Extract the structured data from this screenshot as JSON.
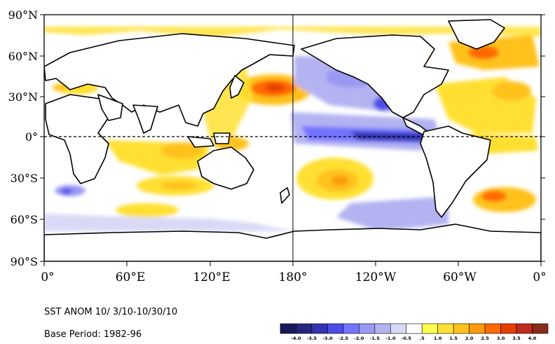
{
  "map": {
    "title": "SST ANOM 10/ 3/10-10/30/10",
    "base_period": "Base Period: 1982-96",
    "lat_labels": [
      "90°N",
      "60°N",
      "30°N",
      "0°",
      "30°S",
      "60°S",
      "90°S"
    ],
    "lon_labels": [
      "0°",
      "60°E",
      "120°E",
      "180°",
      "120°W",
      "60°W",
      "0°"
    ],
    "colorbar": {
      "labels": [
        "-4.0",
        "-3.5",
        "-3.0",
        "-2.5",
        "-2.0",
        "-1.5",
        "-1.0",
        "-0.5",
        ".5",
        "1.0",
        "1.5",
        "2.0",
        "2.5",
        "3.0",
        "3.5",
        "4.0"
      ],
      "colors": [
        "#1a1a5a",
        "#26267f",
        "#3333b3",
        "#4d4de6",
        "#7373ff",
        "#9999f2",
        "#b3b3f2",
        "#d9d9f7",
        "#ffffff",
        "#ffff4d",
        "#ffe033",
        "#ffc21a",
        "#ff9a0d",
        "#ff6a00",
        "#e63d00",
        "#c02a1a",
        "#8a2a1a"
      ]
    }
  }
}
